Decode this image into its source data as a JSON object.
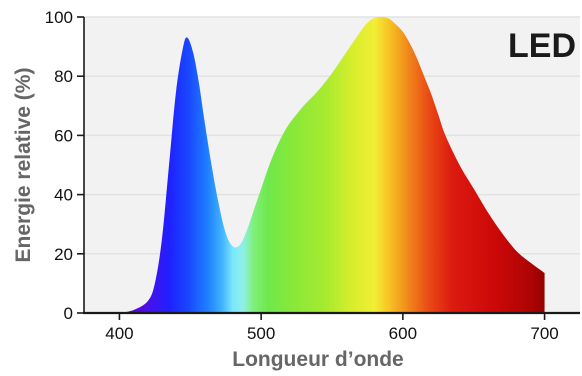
{
  "chart_data": {
    "type": "area",
    "title": "",
    "badge": "LED",
    "xlabel": "Longueur d’onde",
    "ylabel": "Energie relative (%)",
    "xlim": [
      375,
      725
    ],
    "ylim": [
      0,
      100
    ],
    "x_ticks": [
      400,
      500,
      600,
      700
    ],
    "y_ticks": [
      0,
      20,
      40,
      60,
      80,
      100
    ],
    "grid": true,
    "fill": "visible-spectrum-gradient",
    "series": [
      {
        "name": "",
        "points": [
          [
            400,
            0
          ],
          [
            410,
            1
          ],
          [
            420,
            4
          ],
          [
            425,
            10
          ],
          [
            430,
            25
          ],
          [
            435,
            50
          ],
          [
            440,
            75
          ],
          [
            445,
            90
          ],
          [
            448,
            93
          ],
          [
            452,
            88
          ],
          [
            456,
            78
          ],
          [
            460,
            65
          ],
          [
            465,
            50
          ],
          [
            470,
            37
          ],
          [
            475,
            27
          ],
          [
            480,
            22.5
          ],
          [
            485,
            23
          ],
          [
            490,
            28
          ],
          [
            495,
            35
          ],
          [
            500,
            42
          ],
          [
            505,
            49
          ],
          [
            510,
            55
          ],
          [
            515,
            60
          ],
          [
            520,
            64
          ],
          [
            530,
            70
          ],
          [
            540,
            75
          ],
          [
            550,
            81
          ],
          [
            560,
            88
          ],
          [
            570,
            95
          ],
          [
            575,
            98
          ],
          [
            580,
            99.7
          ],
          [
            585,
            100
          ],
          [
            590,
            99.5
          ],
          [
            595,
            97.5
          ],
          [
            600,
            95
          ],
          [
            605,
            91
          ],
          [
            610,
            86
          ],
          [
            615,
            80
          ],
          [
            620,
            74
          ],
          [
            625,
            67
          ],
          [
            630,
            60
          ],
          [
            640,
            50
          ],
          [
            650,
            42
          ],
          [
            660,
            34
          ],
          [
            670,
            27
          ],
          [
            680,
            21
          ],
          [
            690,
            17
          ],
          [
            700,
            13.5
          ]
        ]
      }
    ],
    "colors": {
      "plot_background": "#f2f2f2",
      "gridline": "#e2e2e2",
      "axis": "#1a1a1a"
    }
  }
}
